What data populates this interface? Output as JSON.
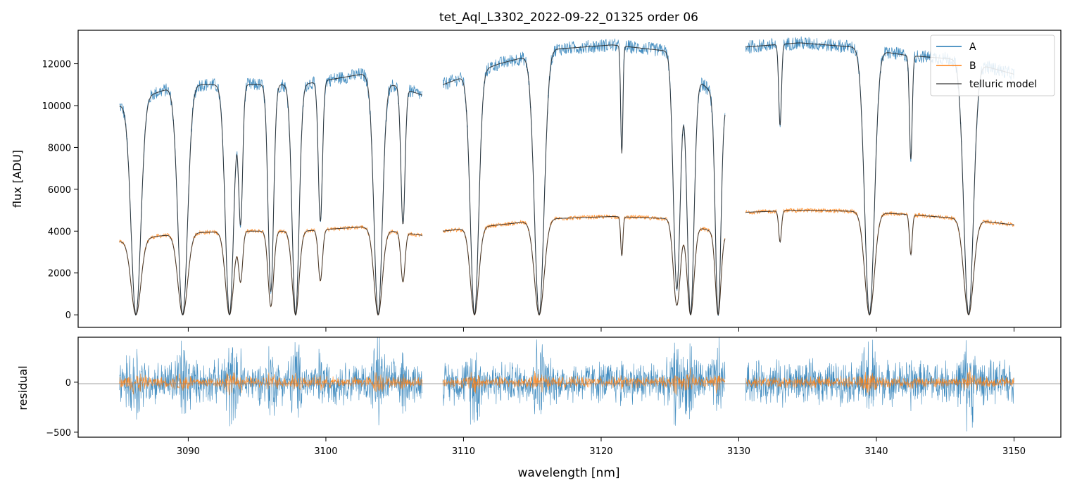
{
  "colors": {
    "A": "#1f77b4",
    "B": "#ff7f0e",
    "model": "#222222",
    "zero_line": "#808080"
  },
  "chart_data": [
    {
      "type": "line",
      "panel": "main",
      "title": "tet_Aql_L3302_2022-09-22_01325  order 06",
      "xlabel": "",
      "ylabel": "flux [ADU]",
      "xlim": [
        3082,
        3153.4
      ],
      "ylim": [
        -600,
        13600
      ],
      "yticks": [
        0,
        2000,
        4000,
        6000,
        8000,
        10000,
        12000
      ],
      "ytick_labels": [
        "0",
        "2000",
        "4000",
        "6000",
        "8000",
        "10000",
        "12000"
      ],
      "xticks": [
        3090,
        3100,
        3110,
        3120,
        3130,
        3140,
        3150
      ],
      "legend": {
        "position": "top-right",
        "entries": [
          "A",
          "B",
          "telluric model"
        ]
      },
      "segments": [
        {
          "x_range": [
            3085.0,
            3107.0
          ],
          "A_continuum": [
            10000,
            11000,
            11000,
            11000,
            11500,
            10500
          ],
          "B_continuum": [
            3500,
            3900,
            4000,
            4000,
            4200,
            3800
          ]
        },
        {
          "x_range": [
            3108.5,
            3129.0
          ],
          "A_continuum": [
            11000,
            12000,
            12700,
            12900,
            12600,
            10000
          ],
          "B_continuum": [
            4000,
            4300,
            4600,
            4700,
            4600,
            3800
          ]
        },
        {
          "x_range": [
            3130.5,
            3150.0
          ],
          "A_continuum": [
            12800,
            13000,
            12800,
            12400,
            12200,
            11500
          ],
          "B_continuum": [
            4900,
            5000,
            4950,
            4800,
            4600,
            4300
          ]
        }
      ],
      "absorption_lines": [
        {
          "x": 3086.2,
          "depth": 1.0,
          "w": 0.35
        },
        {
          "x": 3089.6,
          "depth": 1.0,
          "w": 0.35
        },
        {
          "x": 3093.0,
          "depth": 1.0,
          "w": 0.3
        },
        {
          "x": 3093.8,
          "depth": 0.6,
          "w": 0.15
        },
        {
          "x": 3096.0,
          "depth": 0.9,
          "w": 0.2
        },
        {
          "x": 3097.8,
          "depth": 1.0,
          "w": 0.25
        },
        {
          "x": 3099.6,
          "depth": 0.6,
          "w": 0.15
        },
        {
          "x": 3103.8,
          "depth": 1.0,
          "w": 0.3
        },
        {
          "x": 3105.6,
          "depth": 0.6,
          "w": 0.15
        },
        {
          "x": 3110.8,
          "depth": 1.0,
          "w": 0.3
        },
        {
          "x": 3115.5,
          "depth": 1.0,
          "w": 0.35
        },
        {
          "x": 3125.5,
          "depth": 0.9,
          "w": 0.25
        },
        {
          "x": 3126.5,
          "depth": 1.0,
          "w": 0.25
        },
        {
          "x": 3128.5,
          "depth": 1.0,
          "w": 0.2
        },
        {
          "x": 3139.5,
          "depth": 1.0,
          "w": 0.35
        },
        {
          "x": 3146.7,
          "depth": 1.0,
          "w": 0.35
        },
        {
          "x": 3121.5,
          "depth": 0.4,
          "w": 0.08
        },
        {
          "x": 3133.0,
          "depth": 0.3,
          "w": 0.1
        },
        {
          "x": 3142.5,
          "depth": 0.4,
          "w": 0.1
        }
      ]
    },
    {
      "type": "line",
      "panel": "residual",
      "xlabel": "wavelength [nm]",
      "ylabel": "residual",
      "xlim": [
        3082,
        3153.4
      ],
      "ylim": [
        -550,
        450
      ],
      "yticks": [
        -500,
        0
      ],
      "ytick_labels": [
        "−500",
        "0"
      ],
      "xticks": [
        3090,
        3100,
        3110,
        3120,
        3130,
        3140,
        3150
      ],
      "xtick_labels": [
        "3090",
        "3100",
        "3110",
        "3120",
        "3130",
        "3140",
        "3150"
      ],
      "series": [
        {
          "name": "A",
          "noise_amplitude": 300
        },
        {
          "name": "B",
          "noise_amplitude": 80
        }
      ],
      "zero_line": 0
    }
  ]
}
